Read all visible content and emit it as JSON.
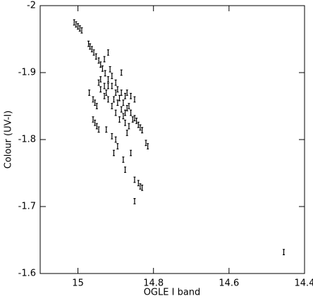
{
  "chart_data": {
    "type": "scatter",
    "x_label": "OGLE I band",
    "y_label": "Colour (UV-I)",
    "xlim": [
      15.1,
      14.4
    ],
    "ylim": [
      -1.6,
      -2
    ],
    "xticks": [
      15,
      14.8,
      14.6,
      14.4
    ],
    "yticks": [
      -2,
      -1.9,
      -1.8,
      -1.7,
      -1.6
    ],
    "y_error": 0.004,
    "color": "#000000",
    "series": [
      {
        "x": [
          15.01,
          15.005,
          15.0,
          14.995,
          14.99,
          14.972,
          14.968,
          14.963,
          14.958,
          14.952,
          14.945,
          14.94,
          14.935,
          14.928,
          14.92,
          14.91,
          14.9,
          14.89,
          14.88,
          14.87,
          14.86,
          14.85,
          14.845,
          14.84,
          14.835,
          14.83,
          14.96,
          14.955,
          14.95,
          14.96,
          14.955,
          14.95,
          14.945,
          14.82,
          14.815,
          14.97,
          14.94,
          14.93,
          14.92,
          14.93,
          14.925,
          14.92,
          14.91,
          14.9,
          14.89,
          14.88,
          14.87,
          14.86,
          14.85,
          14.84,
          14.835,
          14.83,
          14.85,
          14.875,
          14.905,
          14.9,
          14.895,
          14.88,
          14.925,
          14.91,
          14.885,
          14.9,
          14.915,
          14.87,
          14.86,
          14.85,
          14.865,
          14.875,
          14.865,
          14.855,
          14.905,
          14.895,
          14.885,
          14.875,
          14.895,
          14.885,
          14.875,
          14.91,
          14.92,
          14.93,
          14.94,
          14.945,
          14.455
        ],
        "values": [
          -1.975,
          -1.972,
          -1.969,
          -1.966,
          -1.963,
          -1.943,
          -1.939,
          -1.935,
          -1.93,
          -1.924,
          -1.918,
          -1.912,
          -1.906,
          -1.899,
          -1.89,
          -1.88,
          -1.87,
          -1.862,
          -1.855,
          -1.847,
          -1.84,
          -1.832,
          -1.828,
          -1.822,
          -1.818,
          -1.814,
          -1.86,
          -1.855,
          -1.85,
          -1.83,
          -1.825,
          -1.82,
          -1.815,
          -1.795,
          -1.79,
          -1.87,
          -1.89,
          -1.92,
          -1.93,
          -1.88,
          -1.87,
          -1.86,
          -1.85,
          -1.84,
          -1.83,
          -1.835,
          -1.81,
          -1.78,
          -1.74,
          -1.735,
          -1.73,
          -1.728,
          -1.708,
          -1.755,
          -1.78,
          -1.8,
          -1.79,
          -1.77,
          -1.815,
          -1.805,
          -1.9,
          -1.885,
          -1.905,
          -1.87,
          -1.865,
          -1.86,
          -1.85,
          -1.825,
          -1.82,
          -1.83,
          -1.86,
          -1.855,
          -1.845,
          -1.84,
          -1.875,
          -1.87,
          -1.865,
          -1.895,
          -1.88,
          -1.865,
          -1.875,
          -1.885,
          -1.632
        ]
      }
    ]
  }
}
